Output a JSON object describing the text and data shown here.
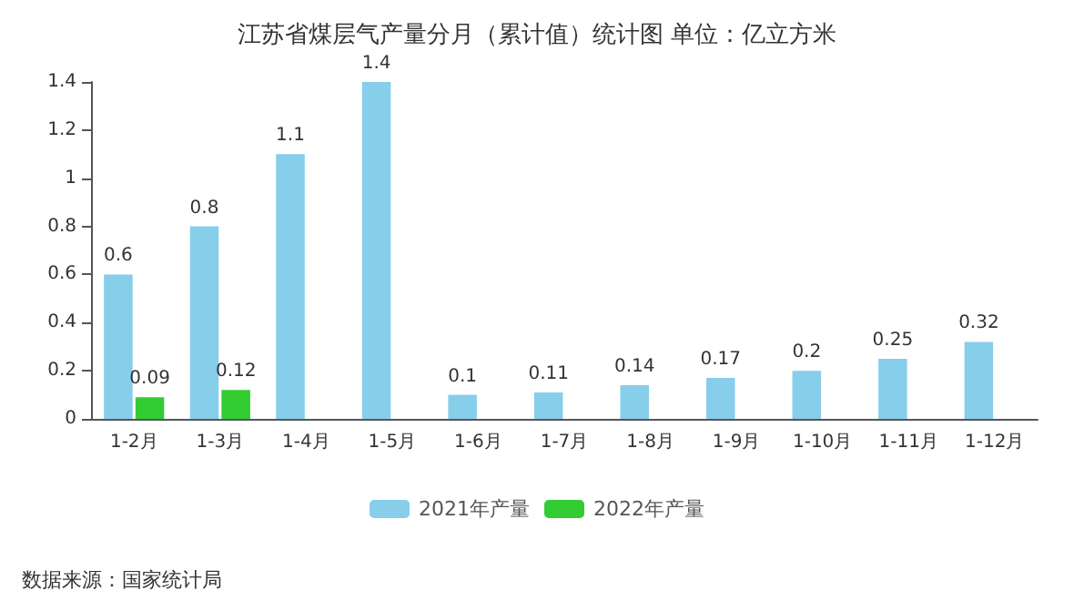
{
  "chart_data": {
    "type": "bar",
    "title": "江苏省煤层气产量分月（累计值）统计图 单位：亿立方米",
    "categories": [
      "1-2月",
      "1-3月",
      "1-4月",
      "1-5月",
      "1-6月",
      "1-7月",
      "1-8月",
      "1-9月",
      "1-10月",
      "1-11月",
      "1-12月"
    ],
    "series": [
      {
        "name": "2021年产量",
        "color": "#87ceeb",
        "values": [
          0.6,
          0.8,
          1.1,
          1.4,
          0.1,
          0.11,
          0.14,
          0.17,
          0.2,
          0.25,
          0.32
        ]
      },
      {
        "name": "2022年产量",
        "color": "#33cc33",
        "values": [
          0.09,
          0.12,
          null,
          null,
          null,
          null,
          null,
          null,
          null,
          null,
          null
        ]
      }
    ],
    "ylim": [
      0,
      1.4
    ],
    "yticks": [
      0,
      0.2,
      0.4,
      0.6,
      0.8,
      1,
      1.2,
      1.4
    ],
    "data_labels": true,
    "grid": false,
    "legend": "bottom",
    "annotations": [
      "数据来源：国家统计局"
    ]
  }
}
